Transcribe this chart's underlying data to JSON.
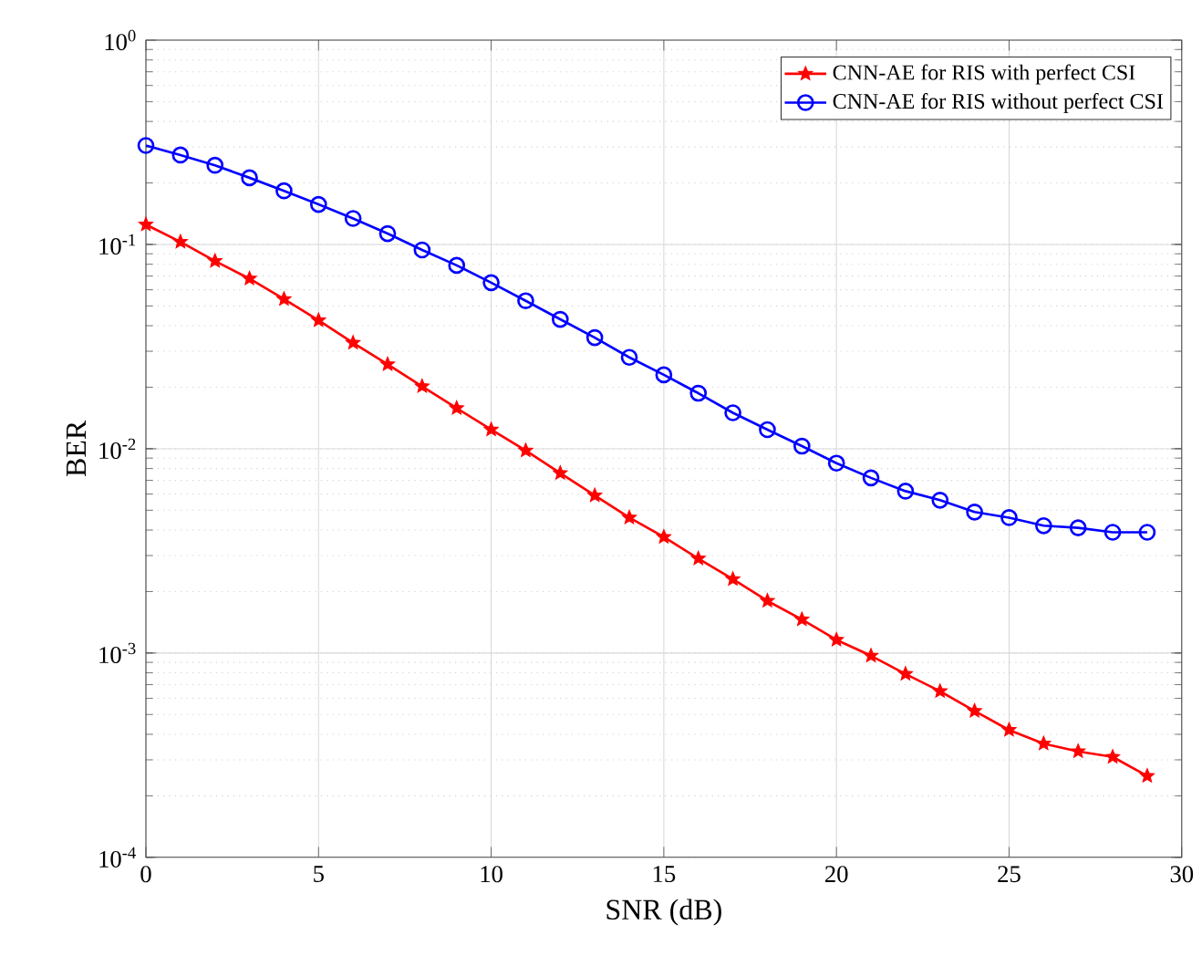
{
  "chart_data": {
    "type": "line",
    "xlabel": "SNR (dB)",
    "ylabel": "BER",
    "x": [
      0,
      1,
      2,
      3,
      4,
      5,
      6,
      7,
      8,
      9,
      10,
      11,
      12,
      13,
      14,
      15,
      16,
      17,
      18,
      19,
      20,
      21,
      22,
      23,
      24,
      25,
      26,
      27,
      28,
      29
    ],
    "series": [
      {
        "name": "CNN-AE for RIS with perfect CSI",
        "color": "#ff0000",
        "marker": "star",
        "values": [
          0.125,
          0.103,
          0.083,
          0.068,
          0.054,
          0.0425,
          0.033,
          0.0259,
          0.0202,
          0.0158,
          0.0124,
          0.0098,
          0.0076,
          0.0059,
          0.0046,
          0.0037,
          0.0029,
          0.0023,
          0.0018,
          0.00146,
          0.00116,
          0.00097,
          0.00079,
          0.00065,
          0.00052,
          0.00042,
          0.00036,
          0.00033,
          0.00031,
          0.00025
        ]
      },
      {
        "name": "CNN-AE for RIS without perfect CSI",
        "color": "#0000ff",
        "marker": "circle",
        "values": [
          0.305,
          0.274,
          0.244,
          0.212,
          0.183,
          0.157,
          0.134,
          0.113,
          0.094,
          0.079,
          0.065,
          0.053,
          0.043,
          0.035,
          0.028,
          0.023,
          0.0187,
          0.015,
          0.0124,
          0.0103,
          0.0085,
          0.0072,
          0.0062,
          0.0056,
          0.0049,
          0.0046,
          0.0042,
          0.0041,
          0.0039,
          0.0039
        ]
      }
    ],
    "xlim": [
      0,
      30
    ],
    "xticks": [
      0,
      5,
      10,
      15,
      20,
      25,
      30
    ],
    "ylim": [
      0.0001,
      1
    ],
    "yticks": [
      {
        "value": 0.0001,
        "label": "10$^{-4}$"
      },
      {
        "value": 0.001,
        "label": "10$^{-3}$"
      },
      {
        "value": 0.01,
        "label": "10$^{-2}$"
      },
      {
        "value": 0.1,
        "label": "10$^{-1}$"
      },
      {
        "value": 1,
        "label": "10$^{0}$"
      }
    ],
    "log": "y",
    "grid": true,
    "legend": "top right",
    "line_style": "solid"
  }
}
